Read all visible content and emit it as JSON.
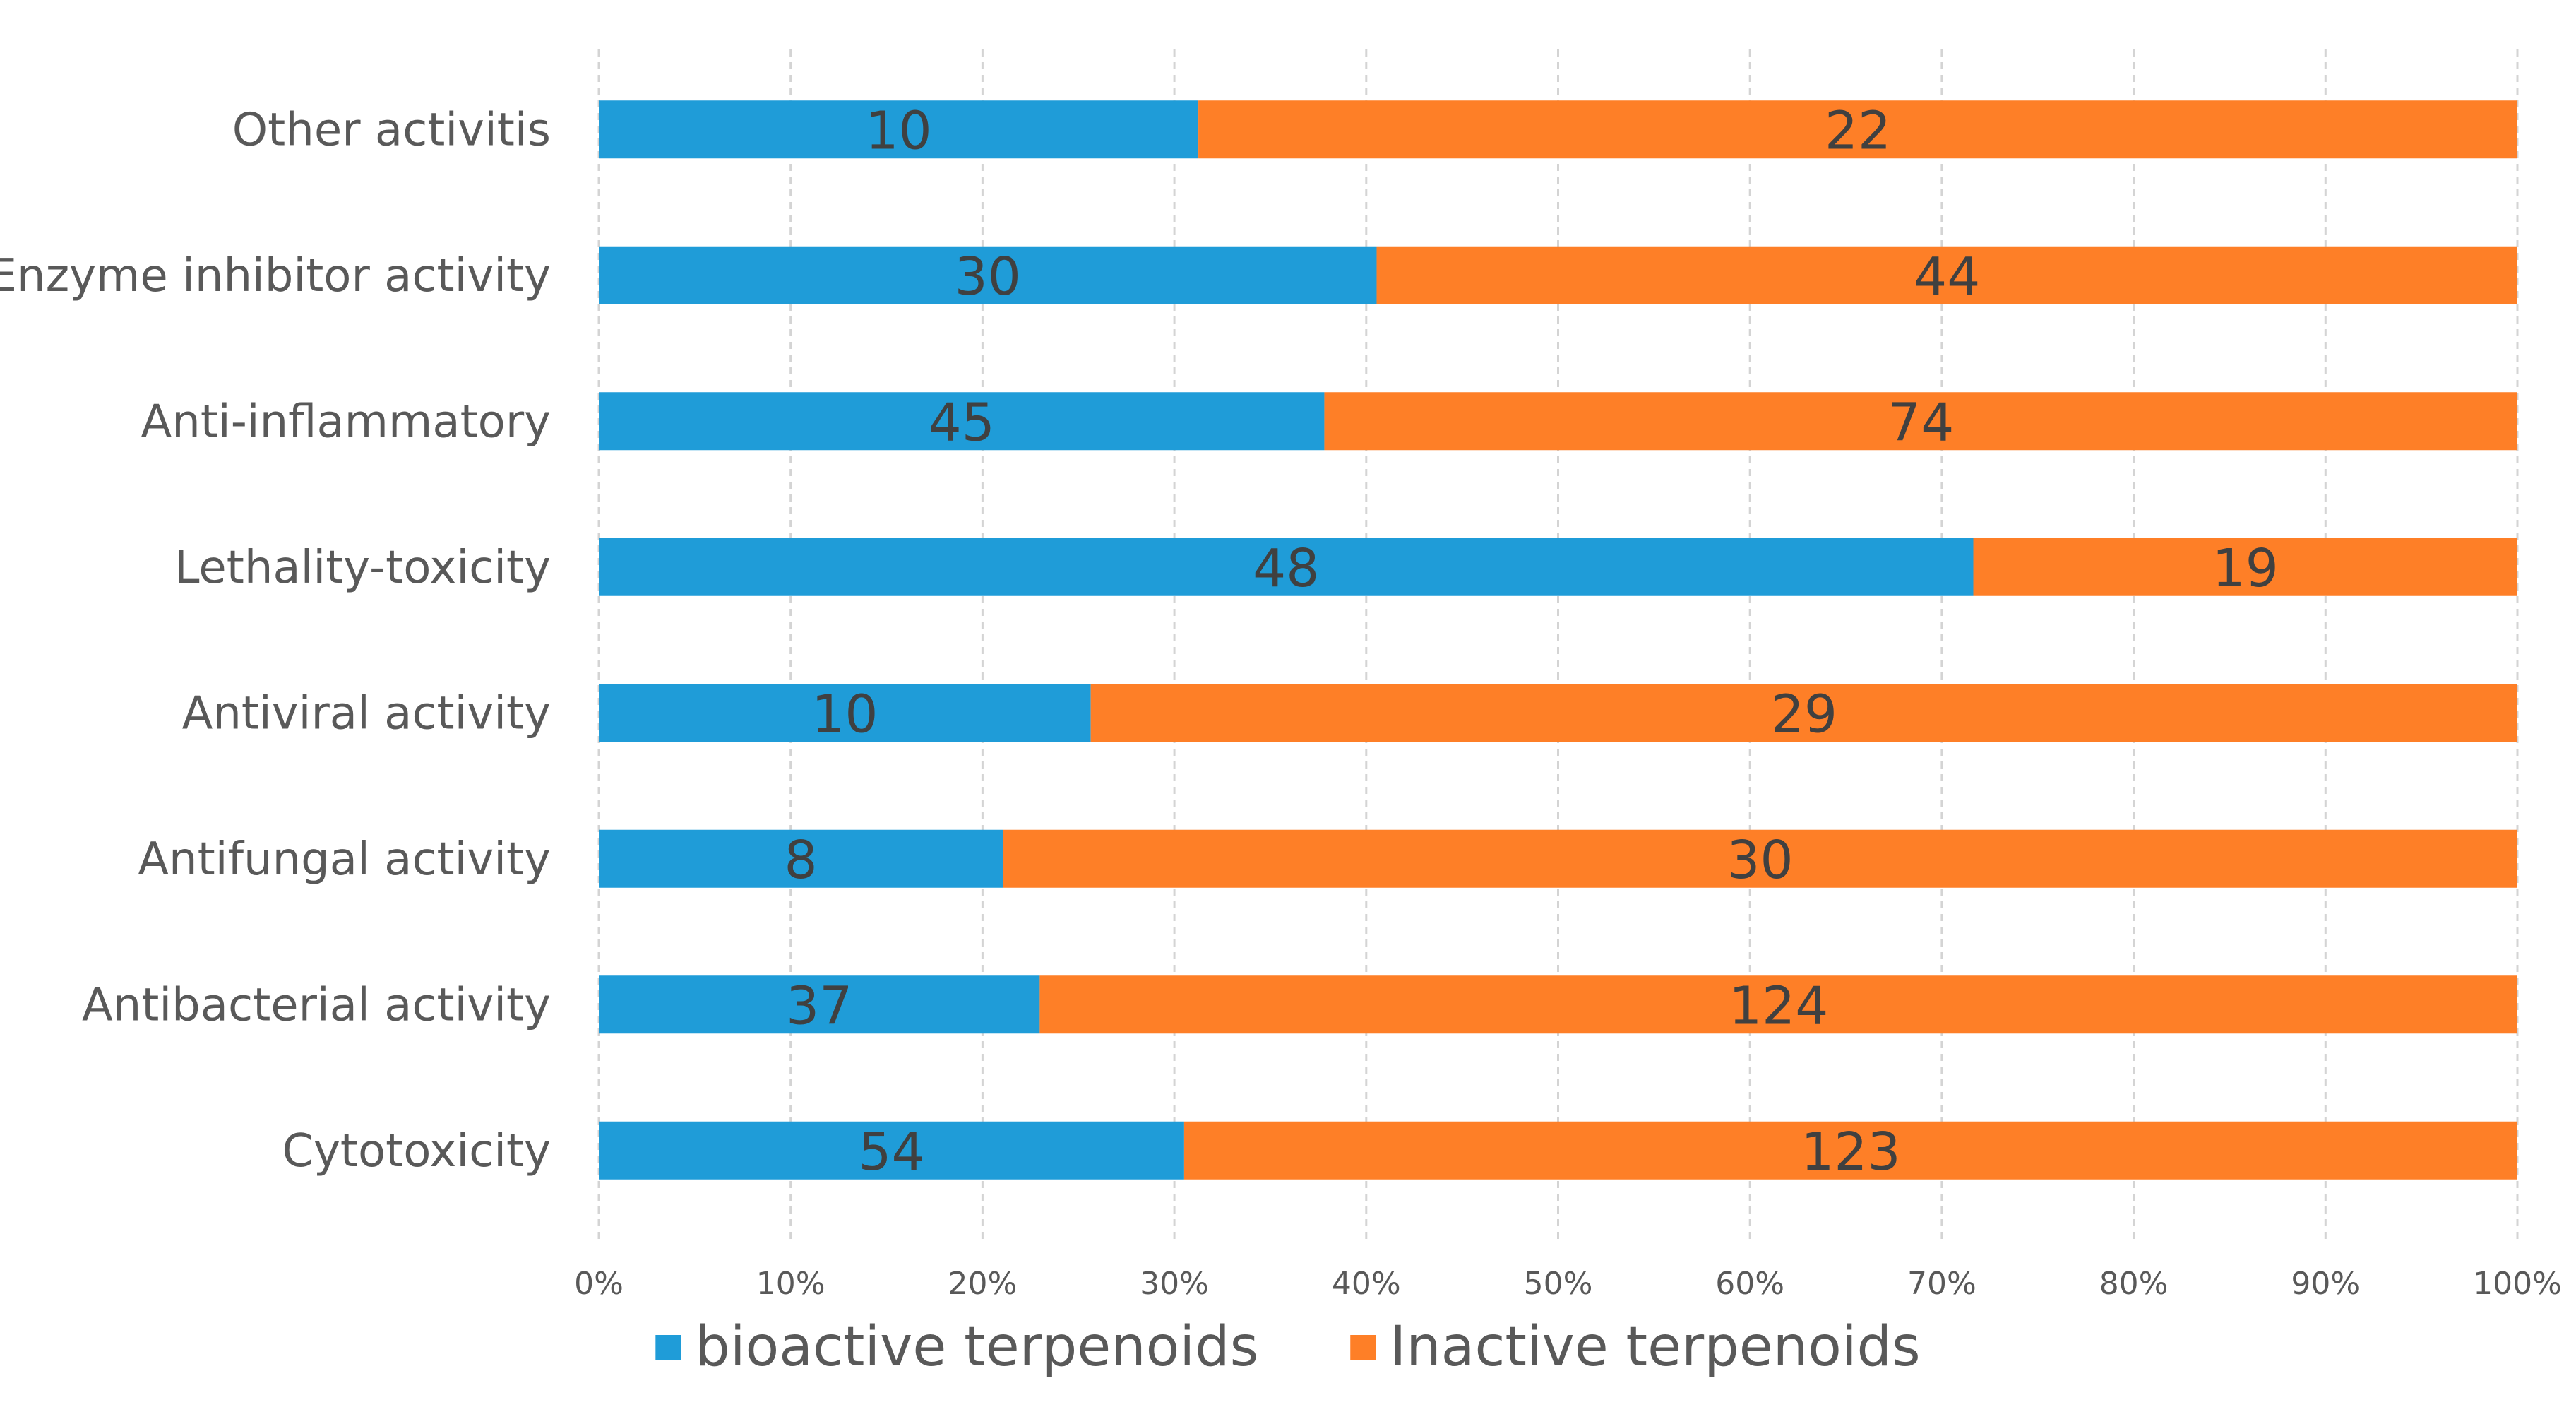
{
  "chart_data": {
    "type": "bar",
    "orientation": "horizontal",
    "stacking": "percent",
    "title": "",
    "xlabel": "",
    "ylabel": "",
    "categories": [
      "Cytotoxicity",
      "Antibacterial activity",
      "Antifungal activity",
      "Antiviral activity",
      "Lethality-toxicity",
      "Anti-inflammatory",
      "Enzyme inhibitor activity",
      "Other activitis"
    ],
    "series": [
      {
        "name": "bioactive terpenoids",
        "color": "#1f9cd8",
        "values": [
          54,
          37,
          8,
          10,
          48,
          45,
          30,
          10
        ]
      },
      {
        "name": "Inactive terpenoids",
        "color": "#fe7f27",
        "values": [
          123,
          124,
          30,
          29,
          19,
          74,
          44,
          22
        ]
      }
    ],
    "xlim": [
      0,
      100
    ],
    "xticks": [
      "0%",
      "10%",
      "20%",
      "30%",
      "40%",
      "50%",
      "60%",
      "70%",
      "80%",
      "90%",
      "100%"
    ],
    "grid": true,
    "legend_position": "bottom"
  }
}
